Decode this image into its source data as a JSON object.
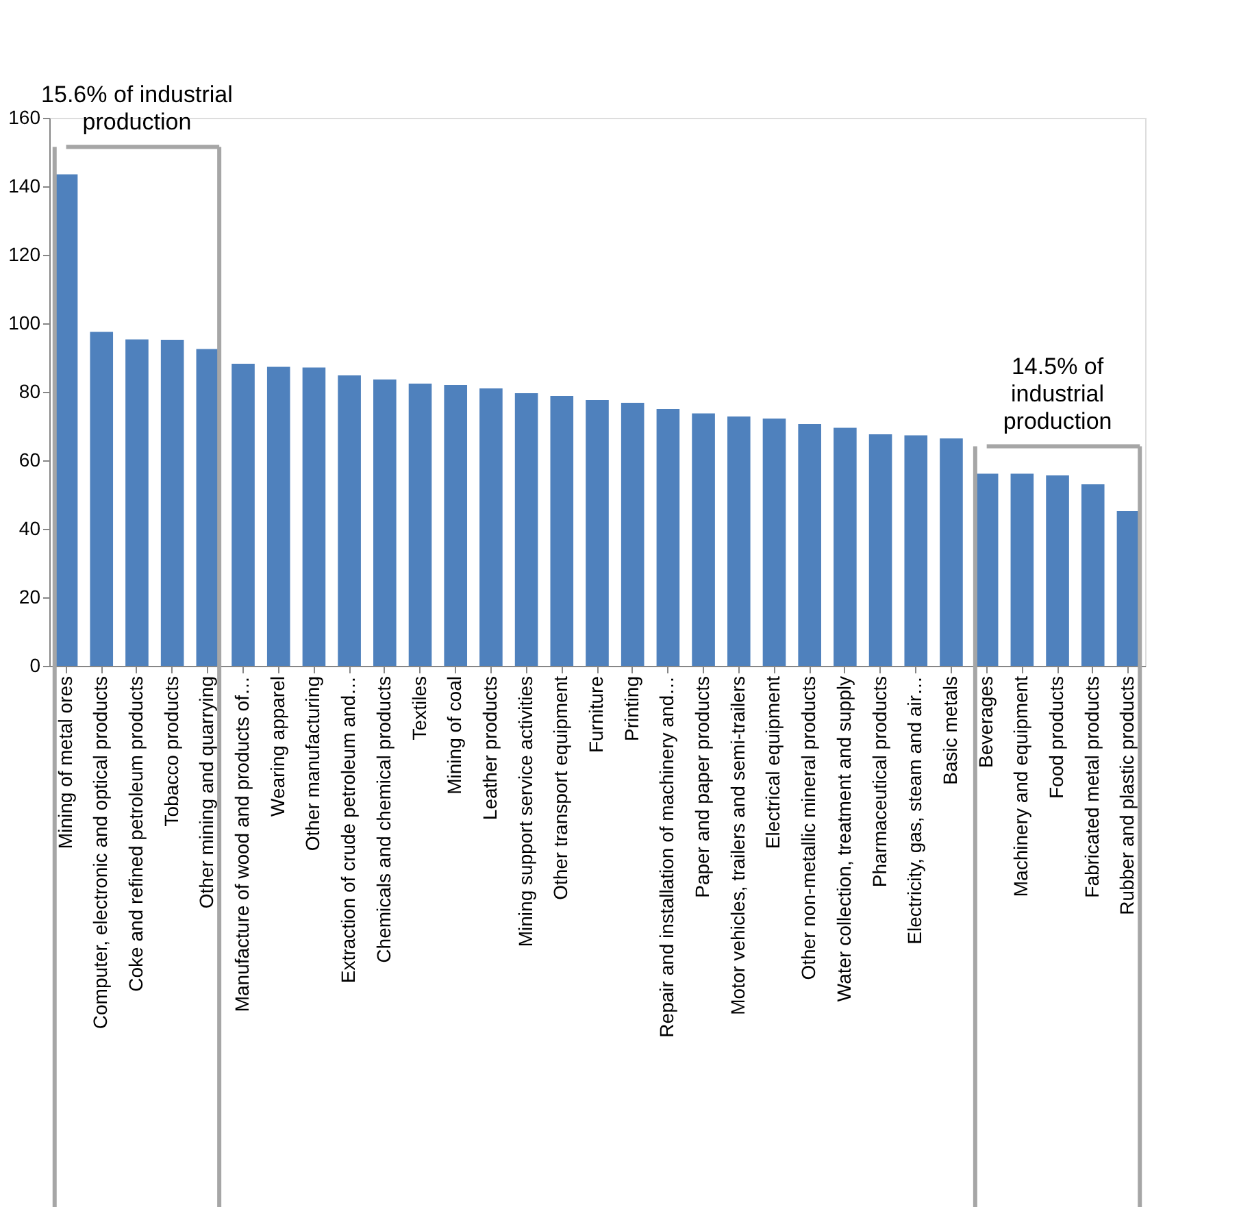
{
  "chart_data": {
    "type": "bar",
    "categories": [
      "Mining of metal ores",
      "Computer, electronic and optical products",
      "Coke and refined petroleum products",
      "Tobacco products",
      "Other mining and quarrying",
      "Manufacture of wood and products of…",
      "Wearing apparel",
      "Other manufacturing",
      "Extraction of crude petroleum and…",
      "Chemicals and chemical products",
      "Textiles",
      "Mining of coal",
      "Leather products",
      "Mining support service activities",
      "Other transport equipment",
      "Furniture",
      "Printing",
      "Repair and installation of machinery and…",
      "Paper and paper products",
      "Motor vehicles, trailers and semi-trailers",
      "Electrical equipment",
      "Other non-metallic mineral products",
      "Water collection, treatment and supply",
      "Pharmaceutical products",
      "Electricity, gas, steam and air…",
      "Basic metals",
      "Beverages",
      "Machinery and equipment",
      "Food products",
      "Fabricated metal products",
      "Rubber and plastic products"
    ],
    "values": [
      143.5,
      97.5,
      95.3,
      95.2,
      92.5,
      88.2,
      87.3,
      87.1,
      84.8,
      83.6,
      82.4,
      82.0,
      81.0,
      79.6,
      78.8,
      77.6,
      76.8,
      75.0,
      73.7,
      72.8,
      72.2,
      70.6,
      69.5,
      67.6,
      67.3,
      66.4,
      56.1,
      56.1,
      55.6,
      53.0,
      45.2
    ],
    "color": "#4f81bd",
    "ylim": [
      0,
      160
    ],
    "yticks": [
      0,
      20,
      40,
      60,
      80,
      100,
      120,
      140,
      160
    ],
    "grid": false,
    "annotations": [
      "15.6% of industrial production",
      "14.5% of industrial production"
    ]
  }
}
